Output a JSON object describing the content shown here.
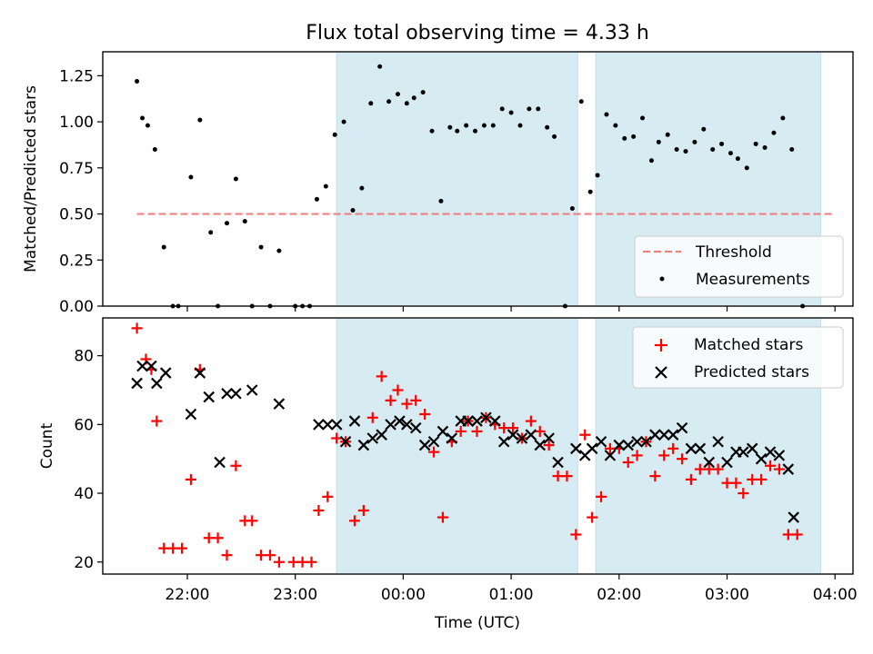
{
  "chart_data": [
    {
      "type": "scatter",
      "title": "Flux total observing time = 4.33 h",
      "ylabel": "Matched/Predicted stars",
      "xlabel": "",
      "x_ticks": [
        "22:00",
        "23:00",
        "00:00",
        "01:00",
        "02:00",
        "03:00",
        "04:00"
      ],
      "y_ticks": [
        "0.00",
        "0.25",
        "0.50",
        "0.75",
        "1.00",
        "1.25"
      ],
      "ylim": [
        0,
        1.38
      ],
      "threshold": {
        "name": "Threshold",
        "value": 0.5,
        "x_start": "21:32",
        "x_end": "03:59",
        "color": "#f08080"
      },
      "shaded_regions": [
        {
          "start": "23:23",
          "end": "01:37"
        },
        {
          "start": "01:47",
          "end": "03:52"
        }
      ],
      "legend": {
        "placement": "lower right",
        "threshold_label": "Threshold",
        "measurements_label": "Measurements"
      },
      "series": [
        {
          "name": "Measurements",
          "color": "#000000",
          "points": [
            [
              "21:32",
              1.22
            ],
            [
              "21:35",
              1.02
            ],
            [
              "21:38",
              0.98
            ],
            [
              "21:42",
              0.85
            ],
            [
              "21:47",
              0.32
            ],
            [
              "21:52",
              0.0
            ],
            [
              "21:55",
              0.0
            ],
            [
              "22:02",
              0.7
            ],
            [
              "22:07",
              1.01
            ],
            [
              "22:13",
              0.4
            ],
            [
              "22:17",
              0.0
            ],
            [
              "22:22",
              0.45
            ],
            [
              "22:27",
              0.69
            ],
            [
              "22:32",
              0.46
            ],
            [
              "22:36",
              0.0
            ],
            [
              "22:41",
              0.32
            ],
            [
              "22:46",
              0.0
            ],
            [
              "22:51",
              0.3
            ],
            [
              "23:00",
              0.0
            ],
            [
              "23:04",
              0.0
            ],
            [
              "23:08",
              0.0
            ],
            [
              "23:12",
              0.58
            ],
            [
              "23:17",
              0.65
            ],
            [
              "23:22",
              0.93
            ],
            [
              "23:27",
              1.0
            ],
            [
              "23:32",
              0.52
            ],
            [
              "23:37",
              0.64
            ],
            [
              "23:42",
              1.1
            ],
            [
              "23:47",
              1.3
            ],
            [
              "23:52",
              1.11
            ],
            [
              "23:57",
              1.15
            ],
            [
              "00:02",
              1.1
            ],
            [
              "00:06",
              1.13
            ],
            [
              "00:11",
              1.16
            ],
            [
              "00:16",
              0.95
            ],
            [
              "00:21",
              0.57
            ],
            [
              "00:26",
              0.97
            ],
            [
              "00:30",
              0.95
            ],
            [
              "00:35",
              0.98
            ],
            [
              "00:40",
              0.95
            ],
            [
              "00:45",
              0.98
            ],
            [
              "00:50",
              0.98
            ],
            [
              "00:55",
              1.07
            ],
            [
              "01:00",
              1.05
            ],
            [
              "01:05",
              0.98
            ],
            [
              "01:10",
              1.07
            ],
            [
              "01:15",
              1.07
            ],
            [
              "01:20",
              0.97
            ],
            [
              "01:24",
              0.92
            ],
            [
              "01:30",
              0.0
            ],
            [
              "01:34",
              0.53
            ],
            [
              "01:39",
              1.11
            ],
            [
              "01:44",
              0.62
            ],
            [
              "01:48",
              0.71
            ],
            [
              "01:53",
              1.04
            ],
            [
              "01:58",
              0.98
            ],
            [
              "02:03",
              0.91
            ],
            [
              "02:08",
              0.92
            ],
            [
              "02:13",
              1.02
            ],
            [
              "02:18",
              0.79
            ],
            [
              "02:22",
              0.89
            ],
            [
              "02:27",
              0.93
            ],
            [
              "02:32",
              0.85
            ],
            [
              "02:37",
              0.84
            ],
            [
              "02:42",
              0.89
            ],
            [
              "02:47",
              0.96
            ],
            [
              "02:52",
              0.85
            ],
            [
              "02:57",
              0.88
            ],
            [
              "03:02",
              0.83
            ],
            [
              "03:06",
              0.8
            ],
            [
              "03:11",
              0.75
            ],
            [
              "03:16",
              0.88
            ],
            [
              "03:21",
              0.86
            ],
            [
              "03:26",
              0.94
            ],
            [
              "03:31",
              1.02
            ],
            [
              "03:36",
              0.85
            ],
            [
              "03:42",
              0.0
            ]
          ]
        }
      ]
    },
    {
      "type": "scatter",
      "title": "",
      "ylabel": "Count",
      "xlabel": "Time (UTC)",
      "x_ticks": [
        "22:00",
        "23:00",
        "00:00",
        "01:00",
        "02:00",
        "03:00",
        "04:00"
      ],
      "y_ticks": [
        "20",
        "40",
        "60",
        "80"
      ],
      "ylim": [
        16.5,
        91
      ],
      "shaded_regions": [
        {
          "start": "23:23",
          "end": "01:37"
        },
        {
          "start": "01:47",
          "end": "03:52"
        }
      ],
      "legend": {
        "placement": "upper right"
      },
      "series": [
        {
          "name": "Matched stars",
          "color": "#ff0000",
          "marker": "plus",
          "points": [
            [
              "21:32",
              88
            ],
            [
              "21:37",
              79
            ],
            [
              "21:40",
              76
            ],
            [
              "21:43",
              61
            ],
            [
              "21:47",
              24
            ],
            [
              "21:52",
              24
            ],
            [
              "21:57",
              24
            ],
            [
              "22:02",
              44
            ],
            [
              "22:07",
              76
            ],
            [
              "22:12",
              27
            ],
            [
              "22:17",
              27
            ],
            [
              "22:22",
              22
            ],
            [
              "22:27",
              48
            ],
            [
              "22:32",
              32
            ],
            [
              "22:36",
              32
            ],
            [
              "22:41",
              22
            ],
            [
              "22:46",
              22
            ],
            [
              "22:51",
              20
            ],
            [
              "22:59",
              20
            ],
            [
              "23:04",
              20
            ],
            [
              "23:09",
              20
            ],
            [
              "23:13",
              35
            ],
            [
              "23:18",
              39
            ],
            [
              "23:23",
              56
            ],
            [
              "23:28",
              55
            ],
            [
              "23:33",
              32
            ],
            [
              "23:38",
              35
            ],
            [
              "23:43",
              62
            ],
            [
              "23:48",
              74
            ],
            [
              "23:53",
              67
            ],
            [
              "23:57",
              70
            ],
            [
              "00:02",
              66
            ],
            [
              "00:07",
              67
            ],
            [
              "00:12",
              63
            ],
            [
              "00:17",
              52
            ],
            [
              "00:22",
              33
            ],
            [
              "00:27",
              55
            ],
            [
              "00:32",
              58
            ],
            [
              "00:36",
              61
            ],
            [
              "00:41",
              58
            ],
            [
              "00:46",
              62
            ],
            [
              "00:51",
              60
            ],
            [
              "00:56",
              59
            ],
            [
              "01:01",
              59
            ],
            [
              "01:06",
              56
            ],
            [
              "01:11",
              61
            ],
            [
              "01:16",
              58
            ],
            [
              "01:21",
              54
            ],
            [
              "01:26",
              45
            ],
            [
              "01:31",
              45
            ],
            [
              "01:36",
              28
            ],
            [
              "01:41",
              57
            ],
            [
              "01:45",
              33
            ],
            [
              "01:50",
              39
            ],
            [
              "01:55",
              53
            ],
            [
              "02:00",
              53
            ],
            [
              "02:05",
              49
            ],
            [
              "02:10",
              51
            ],
            [
              "02:15",
              55
            ],
            [
              "02:20",
              45
            ],
            [
              "02:25",
              51
            ],
            [
              "02:30",
              53
            ],
            [
              "02:35",
              50
            ],
            [
              "02:40",
              44
            ],
            [
              "02:45",
              47
            ],
            [
              "02:50",
              47
            ],
            [
              "02:55",
              47
            ],
            [
              "03:00",
              43
            ],
            [
              "03:05",
              43
            ],
            [
              "03:09",
              40
            ],
            [
              "03:14",
              44
            ],
            [
              "03:19",
              44
            ],
            [
              "03:24",
              48
            ],
            [
              "03:29",
              47
            ],
            [
              "03:34",
              28
            ],
            [
              "03:39",
              28
            ]
          ]
        },
        {
          "name": "Predicted stars",
          "color": "#000000",
          "marker": "x",
          "points": [
            [
              "21:32",
              72
            ],
            [
              "21:35",
              77
            ],
            [
              "21:40",
              77
            ],
            [
              "21:43",
              72
            ],
            [
              "21:48",
              75
            ],
            [
              "22:02",
              63
            ],
            [
              "22:07",
              75
            ],
            [
              "22:12",
              68
            ],
            [
              "22:18",
              49
            ],
            [
              "22:22",
              69
            ],
            [
              "22:27",
              69
            ],
            [
              "22:36",
              70
            ],
            [
              "22:51",
              66
            ],
            [
              "23:13",
              60
            ],
            [
              "23:18",
              60
            ],
            [
              "23:23",
              60
            ],
            [
              "23:28",
              55
            ],
            [
              "23:33",
              61
            ],
            [
              "23:38",
              54
            ],
            [
              "23:43",
              56
            ],
            [
              "23:48",
              57
            ],
            [
              "23:53",
              60
            ],
            [
              "23:58",
              61
            ],
            [
              "00:02",
              60
            ],
            [
              "00:07",
              59
            ],
            [
              "00:12",
              54
            ],
            [
              "00:17",
              55
            ],
            [
              "00:22",
              58
            ],
            [
              "00:27",
              56
            ],
            [
              "00:32",
              61
            ],
            [
              "00:36",
              61
            ],
            [
              "00:41",
              61
            ],
            [
              "00:46",
              62
            ],
            [
              "00:51",
              61
            ],
            [
              "00:56",
              55
            ],
            [
              "01:01",
              57
            ],
            [
              "01:06",
              56
            ],
            [
              "01:11",
              57
            ],
            [
              "01:16",
              54
            ],
            [
              "01:21",
              56
            ],
            [
              "01:26",
              49
            ],
            [
              "01:36",
              53
            ],
            [
              "01:41",
              51
            ],
            [
              "01:45",
              53
            ],
            [
              "01:50",
              55
            ],
            [
              "01:55",
              51
            ],
            [
              "02:00",
              54
            ],
            [
              "02:05",
              54
            ],
            [
              "02:10",
              55
            ],
            [
              "02:15",
              55
            ],
            [
              "02:20",
              57
            ],
            [
              "02:25",
              57
            ],
            [
              "02:30",
              57
            ],
            [
              "02:35",
              59
            ],
            [
              "02:40",
              53
            ],
            [
              "02:45",
              53
            ],
            [
              "02:50",
              49
            ],
            [
              "02:55",
              55
            ],
            [
              "03:00",
              49
            ],
            [
              "03:05",
              52
            ],
            [
              "03:09",
              52
            ],
            [
              "03:14",
              53
            ],
            [
              "03:19",
              50
            ],
            [
              "03:24",
              52
            ],
            [
              "03:29",
              51
            ],
            [
              "03:34",
              47
            ],
            [
              "03:37",
              33
            ]
          ]
        }
      ]
    }
  ]
}
